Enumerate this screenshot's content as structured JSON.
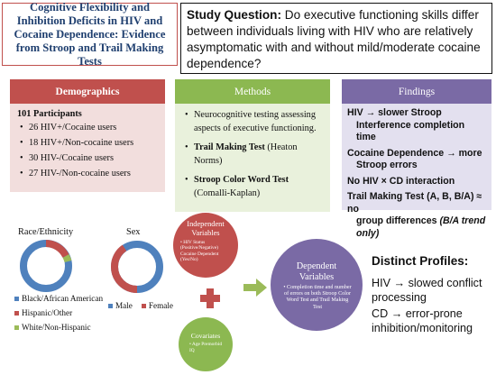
{
  "title": "Cognitive Flexibility and Inhibition Deficits in HIV and Cocaine Dependence: Evidence from Stroop and Trail Making Tests",
  "question": {
    "label": "Study Question:",
    "text": " Do executive functioning skills differ between individuals living with HIV who are relatively asymptomatic with and without mild/moderate cocaine dependence?"
  },
  "demographics": {
    "header": "Demographics",
    "total": "101 Participants",
    "groups": [
      "26 HIV+/Cocaine users",
      "18 HIV+/Non-cocaine users",
      "30 HIV-/Cocaine users",
      "27 HIV-/Non-cocaine users"
    ]
  },
  "methods": {
    "header": "Methods",
    "item1": "Neurocognitive testing assessing aspects of executive functioning.",
    "item2_bold": "Trail Making Test",
    "item2_rest": " (Heaton Norms)",
    "item3_bold": "Stroop Color Word Test",
    "item3_rest": " (Comalli-Kaplan)"
  },
  "findings": {
    "header": "Findings",
    "f1a": "HIV → slower Stroop",
    "f1b": "Interference completion time",
    "f2a": "Cocaine Dependence → more",
    "f2b": "Stroop errors",
    "f3": "No HIV × CD interaction",
    "f4a": "Trail Making Test (A, B, B/A) ≈ no",
    "f4b": "group differences",
    "f4c": "(B/A trend only)"
  },
  "race_chart": {
    "title": "Race/Ethnicity",
    "legend": [
      "Black/African American",
      "Hispanic/Other",
      "White/Non-Hispanic"
    ],
    "colors": [
      "#4f81bd",
      "#c0504d",
      "#9bbb59"
    ]
  },
  "sex_chart": {
    "title": "Sex",
    "legend": [
      "Male",
      "Female"
    ],
    "colors": [
      "#4f81bd",
      "#c0504d"
    ]
  },
  "diagram": {
    "independent_title": "Independent Variables",
    "independent_detail": "• HIV Status (Positive/Negative) Cocaine Dependent (Yes/No)",
    "covariates_title": "Covariates",
    "covariates_detail": "• Age Premorbid IQ",
    "dependent_title": "Dependent Variables",
    "dependent_detail": "• Completion time and number of errors on both Stroop Color Word Test and Trail Making Test"
  },
  "profiles": {
    "title": "Distinct Profiles:",
    "p1": "HIV → slowed conflict processing",
    "p2": "CD → error-prone inhibition/monitoring"
  }
}
